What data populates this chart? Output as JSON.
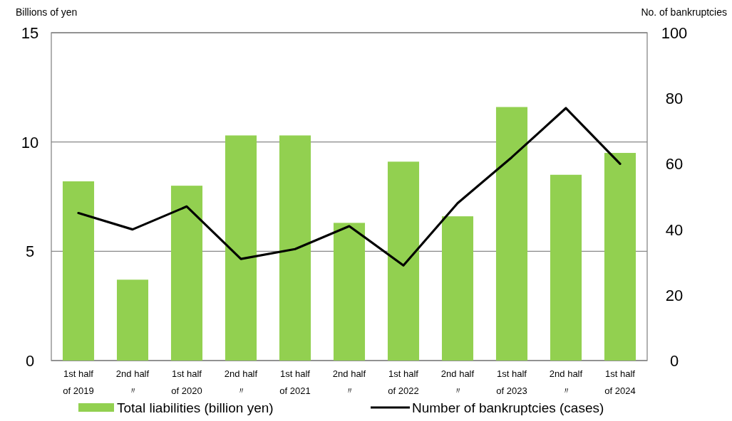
{
  "chart_data": {
    "type": "bar",
    "ylabel": "Billions of yen",
    "y2label": "No. of bankruptcies",
    "categories": [
      "1st half\nof 2019",
      "2nd half\n〃",
      "1st half\nof 2020",
      "2nd half\n〃",
      "1st half\nof 2021",
      "2nd half\n〃",
      "1st half\nof 2022",
      "2nd half\n〃",
      "1st half\nof 2023",
      "2nd half\n〃",
      "1st half\nof 2024"
    ],
    "series": [
      {
        "name": "Total liabilities (billion yen)",
        "color": "#92d050",
        "values": [
          8.2,
          3.7,
          8.0,
          10.3,
          10.3,
          6.3,
          9.1,
          6.6,
          11.6,
          8.5,
          9.5
        ]
      },
      {
        "name": "Number of bankruptcies (cases)",
        "type": "line",
        "axis": "y2",
        "color": "#000000",
        "values": [
          45,
          40,
          47,
          31,
          34,
          41,
          29,
          48,
          62,
          77,
          60
        ]
      }
    ],
    "ylim": [
      0,
      15
    ],
    "yticks": [
      0,
      5,
      10,
      15
    ],
    "y2lim": [
      0,
      100
    ],
    "y2ticks": [
      0,
      20,
      40,
      60,
      80,
      100
    ],
    "grid": "y",
    "legend": "bottom"
  }
}
